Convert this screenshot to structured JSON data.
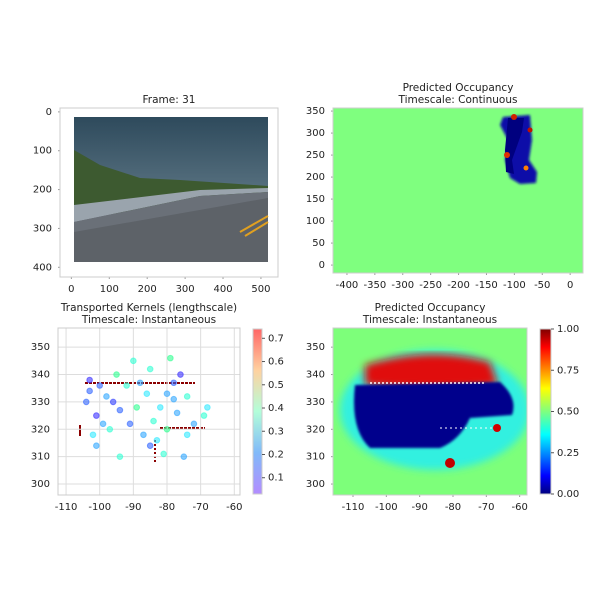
{
  "chart_data": [
    {
      "type": "image",
      "title": "Frame: 31",
      "xlim": [
        -30,
        545
      ],
      "xticks": [
        0,
        100,
        200,
        300,
        400,
        500
      ],
      "ylim": [
        425,
        -10
      ],
      "yticks": [
        0,
        100,
        200,
        300,
        400
      ],
      "grid": false
    },
    {
      "type": "heatmap",
      "title": "Predicted Occupancy",
      "subtitle": "Timescale: Continuous",
      "xlim": [
        -425,
        23
      ],
      "xticks": [
        -400,
        -350,
        -300,
        -250,
        -200,
        -150,
        -100,
        -50,
        0
      ],
      "ylim": [
        -18,
        357
      ],
      "yticks": [
        0,
        50,
        100,
        150,
        200,
        250,
        300,
        350
      ],
      "grid": false
    },
    {
      "type": "scatter",
      "title": "Transported Kernels (lengthscale)",
      "subtitle": "Timescale: Instantaneous",
      "xlim": [
        -112.4,
        -58.3
      ],
      "xticks": [
        -110,
        -100,
        -90,
        -80,
        -70,
        -60
      ],
      "ylim": [
        296,
        357
      ],
      "yticks": [
        300,
        310,
        320,
        330,
        340,
        350
      ],
      "grid": true,
      "x": [
        -103,
        -100,
        -98,
        -96,
        -104,
        -101,
        -99,
        -102,
        -97,
        -94,
        -92,
        -95,
        -90,
        -88,
        -86,
        -89,
        -91,
        -87,
        -84,
        -82,
        -80,
        -78,
        -76,
        -74,
        -77,
        -80,
        -83,
        -85,
        -81,
        -74,
        -72,
        -69,
        -68,
        -75,
        -79,
        -85,
        -94,
        -101,
        -103,
        -78
      ],
      "y": [
        338,
        336,
        332,
        330,
        330,
        325,
        322,
        318,
        320,
        327,
        336,
        340,
        345,
        337,
        333,
        328,
        322,
        318,
        323,
        328,
        333,
        337,
        340,
        332,
        326,
        320,
        316,
        314,
        311,
        318,
        322,
        325,
        328,
        310,
        346,
        342,
        310,
        314,
        334,
        331
      ],
      "c": [
        0.1,
        0.15,
        0.2,
        0.12,
        0.15,
        0.1,
        0.2,
        0.25,
        0.3,
        0.15,
        0.3,
        0.35,
        0.3,
        0.2,
        0.25,
        0.35,
        0.15,
        0.2,
        0.3,
        0.25,
        0.2,
        0.15,
        0.1,
        0.3,
        0.2,
        0.35,
        0.25,
        0.15,
        0.3,
        0.25,
        0.2,
        0.3,
        0.25,
        0.2,
        0.35,
        0.3,
        0.3,
        0.2,
        0.15,
        0.2
      ],
      "colorbar": {
        "colormap": "rainbow",
        "lim": [
          0.03,
          0.74
        ],
        "ticks": [
          0.1,
          0.2,
          0.3,
          0.4,
          0.5,
          0.6,
          0.7
        ]
      }
    },
    {
      "type": "heatmap",
      "title": "Predicted Occupancy",
      "subtitle": "Timescale: Instantaneous",
      "xlim": [
        -116,
        -57.8
      ],
      "xticks": [
        -110,
        -100,
        -90,
        -80,
        -70,
        -60
      ],
      "ylim": [
        296,
        357
      ],
      "yticks": [
        300,
        310,
        320,
        330,
        340,
        350
      ],
      "grid": false,
      "colorbar": {
        "colormap": "jet",
        "lim": [
          0,
          1
        ],
        "ticks": [
          {
            "value": 0,
            "label": "0.00"
          },
          {
            "value": 0.25,
            "label": "0.25"
          },
          {
            "value": 0.5,
            "label": "0.50"
          },
          {
            "value": 0.75,
            "label": "0.75"
          },
          {
            "value": 1,
            "label": "1.00"
          }
        ]
      }
    }
  ]
}
